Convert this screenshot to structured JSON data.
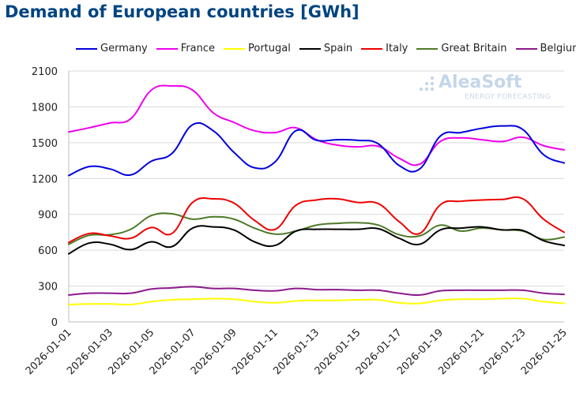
{
  "title": "Demand of European countries [GWh]",
  "watermark": {
    "brand": "AleaSoft",
    "tagline": "ENERGY FORECASTING",
    "color": "#c5d6ea"
  },
  "chart_data": {
    "type": "line",
    "title": "Demand of European countries [GWh]",
    "xlabel": "",
    "ylabel": "",
    "ylim": [
      0,
      2100
    ],
    "yticks": [
      0,
      300,
      600,
      900,
      1200,
      1500,
      1800,
      2100
    ],
    "grid": true,
    "legend_position": "top",
    "x": [
      "2026-01-01",
      "2026-01-02",
      "2026-01-03",
      "2026-01-04",
      "2026-01-05",
      "2026-01-06",
      "2026-01-07",
      "2026-01-08",
      "2026-01-09",
      "2026-01-10",
      "2026-01-11",
      "2026-01-12",
      "2026-01-13",
      "2026-01-14",
      "2026-01-15",
      "2026-01-16",
      "2026-01-17",
      "2026-01-18",
      "2026-01-19",
      "2026-01-20",
      "2026-01-21",
      "2026-01-22",
      "2026-01-23",
      "2026-01-24",
      "2026-01-25"
    ],
    "xtick_labels": [
      "2026-01-01",
      "2026-01-03",
      "2026-01-05",
      "2026-01-07",
      "2026-01-09",
      "2026-01-11",
      "2026-01-13",
      "2026-01-15",
      "2026-01-17",
      "2026-01-19",
      "2026-01-21",
      "2026-01-23",
      "2026-01-25"
    ],
    "series": [
      {
        "name": "Germany",
        "color": "#0000dd",
        "values": [
          1225,
          1300,
          1280,
          1230,
          1345,
          1410,
          1650,
          1600,
          1420,
          1290,
          1340,
          1600,
          1520,
          1525,
          1520,
          1490,
          1310,
          1280,
          1555,
          1585,
          1620,
          1640,
          1610,
          1400,
          1330
        ]
      },
      {
        "name": "France",
        "color": "#ee00ee",
        "values": [
          1590,
          1625,
          1665,
          1700,
          1940,
          1975,
          1940,
          1750,
          1670,
          1600,
          1585,
          1625,
          1525,
          1480,
          1465,
          1470,
          1370,
          1320,
          1510,
          1540,
          1525,
          1510,
          1545,
          1475,
          1440
        ]
      },
      {
        "name": "Portugal",
        "color": "#ffff00",
        "values": [
          145,
          150,
          150,
          145,
          170,
          185,
          190,
          195,
          190,
          170,
          160,
          175,
          180,
          180,
          185,
          185,
          160,
          155,
          180,
          190,
          190,
          195,
          195,
          170,
          155
        ]
      },
      {
        "name": "Spain",
        "color": "#000000",
        "values": [
          570,
          660,
          650,
          605,
          670,
          630,
          785,
          795,
          770,
          670,
          640,
          760,
          775,
          775,
          775,
          780,
          700,
          650,
          770,
          785,
          795,
          770,
          765,
          680,
          640
        ]
      },
      {
        "name": "Italy",
        "color": "#ee0000",
        "values": [
          665,
          740,
          720,
          700,
          790,
          740,
          1000,
          1030,
          995,
          850,
          775,
          975,
          1020,
          1030,
          1000,
          990,
          840,
          740,
          980,
          1010,
          1020,
          1025,
          1030,
          860,
          750
        ]
      },
      {
        "name": "Great Britain",
        "color": "#4e7a28",
        "values": [
          650,
          725,
          730,
          775,
          890,
          905,
          860,
          880,
          860,
          785,
          735,
          760,
          810,
          825,
          830,
          810,
          730,
          720,
          810,
          760,
          785,
          770,
          760,
          690,
          710
        ]
      },
      {
        "name": "Belgium",
        "color": "#8b1a8b",
        "values": [
          225,
          240,
          240,
          240,
          275,
          285,
          295,
          280,
          280,
          265,
          260,
          280,
          270,
          270,
          265,
          265,
          240,
          225,
          260,
          265,
          265,
          265,
          265,
          240,
          230
        ]
      }
    ]
  }
}
